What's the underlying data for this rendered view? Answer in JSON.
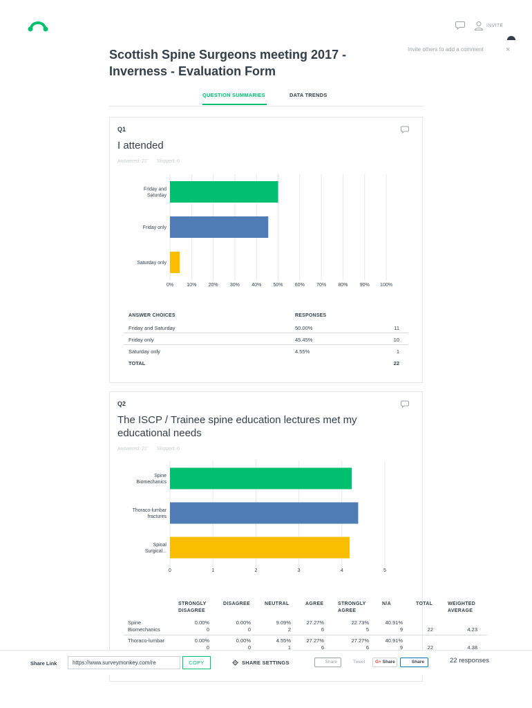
{
  "header": {
    "invite_label": "INVITE",
    "invite_hint": "Invite others to add a comment",
    "close_symbol": "×",
    "logo_icon": "surveymonkey-logo-icon",
    "brand_color": "#00bf6f"
  },
  "survey": {
    "title": "Scottish Spine Surgeons meeting 2017 - Inverness - Evaluation Form"
  },
  "tabs": [
    {
      "label": "QUESTION SUMMARIES",
      "active": true
    },
    {
      "label": "DATA TRENDS",
      "active": false
    }
  ],
  "questions": [
    {
      "number": "Q1",
      "title": "I attended",
      "answered": "Answered: 22",
      "skipped": "Skipped: 0",
      "table": {
        "headers": [
          "ANSWER CHOICES",
          "RESPONSES",
          ""
        ],
        "rows": [
          {
            "choice": "Friday and Saturday",
            "percent": "50.00%",
            "count": "11"
          },
          {
            "choice": "Friday only",
            "percent": "45.45%",
            "count": "10"
          },
          {
            "choice": "Saturday only",
            "percent": "4.55%",
            "count": "1"
          }
        ],
        "total_label": "TOTAL",
        "total_value": "22"
      }
    },
    {
      "number": "Q2",
      "title": "The ISCP / Trainee spine education lectures met my educational needs",
      "answered": "Answered: 22",
      "skipped": "Skipped: 0",
      "table": {
        "headers": [
          "STRONGLY DISAGREE",
          "DISAGREE",
          "NEUTRAL",
          "AGREE",
          "STRONGLY AGREE",
          "N/A",
          "TOTAL",
          "WEIGHTED AVERAGE"
        ],
        "rows": [
          {
            "label": "Spine Biomechanics",
            "percents": [
              "0.00%",
              "0.00%",
              "9.09%",
              "27.27%",
              "22.73%",
              "40.91%"
            ],
            "counts": [
              "0",
              "0",
              "2",
              "6",
              "5",
              "9"
            ],
            "total": "22",
            "weighted": "4.23"
          },
          {
            "label": "Thoraco-lumbar",
            "percents": [
              "0.00%",
              "0.00%",
              "4.55%",
              "27.27%",
              "27.27%",
              "40.91%"
            ],
            "counts": [
              "0",
              "0",
              "1",
              "6",
              "6",
              "9"
            ],
            "total": "22",
            "weighted": "4.38"
          }
        ]
      }
    }
  ],
  "chart_data": [
    {
      "type": "bar",
      "orientation": "horizontal",
      "categories": [
        "Friday and Saturday",
        "Friday only",
        "Saturday only"
      ],
      "category_tick_labels": [
        [
          "Friday and",
          "Saturday"
        ],
        [
          "Friday only"
        ],
        [
          "Saturday only"
        ]
      ],
      "values": [
        50.0,
        45.45,
        4.55
      ],
      "colors": [
        "#00bf6f",
        "#507cb6",
        "#f9be00"
      ],
      "xlim": [
        0,
        100
      ],
      "x_ticks": [
        "0%",
        "10%",
        "20%",
        "30%",
        "40%",
        "50%",
        "60%",
        "70%",
        "80%",
        "90%",
        "100%"
      ],
      "grid": true,
      "title": "",
      "xlabel": "",
      "ylabel": ""
    },
    {
      "type": "bar",
      "orientation": "horizontal",
      "categories": [
        "Spine Biomechanics",
        "Thoraco-lumbar fractures",
        "Spinal Surgical..."
      ],
      "category_tick_labels": [
        [
          "Spine",
          "Biomechanics"
        ],
        [
          "Thoraco-lumbar",
          "fractures"
        ],
        [
          "Spinal",
          "Surgical..."
        ]
      ],
      "values": [
        4.23,
        4.38,
        4.18
      ],
      "colors": [
        "#00bf6f",
        "#507cb6",
        "#f9be00"
      ],
      "xlim": [
        0,
        5
      ],
      "x_ticks": [
        "0",
        "1",
        "2",
        "3",
        "4",
        "5"
      ],
      "grid": true,
      "title": "",
      "xlabel": "",
      "ylabel": ""
    }
  ],
  "share_bar": {
    "share_link_label": "Share Link",
    "url": "https://www.surveymonkey.com/re",
    "copy_label": "COPY",
    "share_settings_label": "SHARE SETTINGS",
    "facebook_label": "Share",
    "tweet_label": "Tweet",
    "gplus_label": "Share",
    "gplus_prefix": "G+",
    "linkedin_label": "Share",
    "responses_label": "22 responses"
  }
}
